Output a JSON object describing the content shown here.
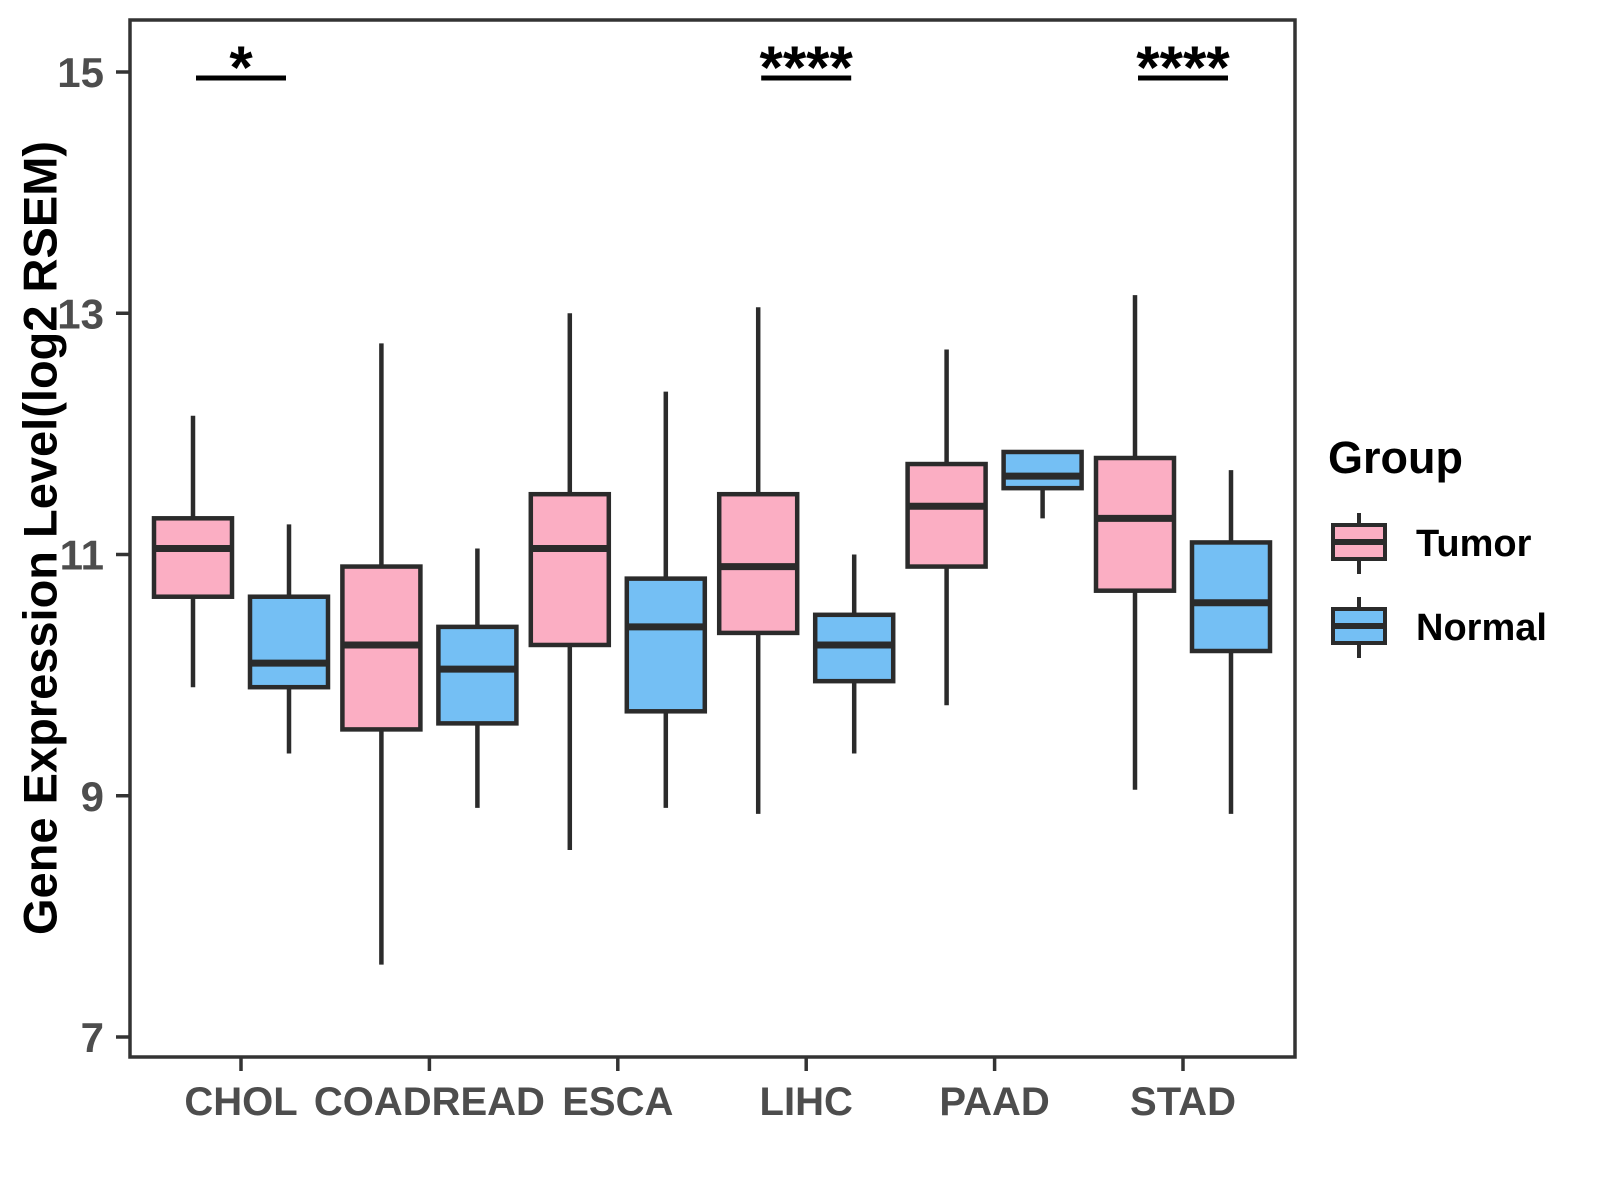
{
  "figure": {
    "background": "#FFFFFF"
  },
  "chart_data": {
    "type": "boxplot",
    "title": "",
    "xlabel": "",
    "ylabel": "Gene Expression Level(log2 RSEM)",
    "yticks": [
      7,
      9,
      11,
      13,
      15
    ],
    "ylim": [
      6.6,
      15.4
    ],
    "grid": false,
    "categories": [
      "CHOL",
      "COADREAD",
      "ESCA",
      "LIHC",
      "PAAD",
      "STAD"
    ],
    "series": [
      {
        "name": "Tumor",
        "color": "#FBAEC3",
        "boxes": [
          {
            "low": 9.9,
            "q1": 10.65,
            "median": 11.05,
            "q3": 11.3,
            "high": 12.15
          },
          {
            "low": 7.6,
            "q1": 9.55,
            "median": 10.25,
            "q3": 10.9,
            "high": 12.75
          },
          {
            "low": 8.55,
            "q1": 10.25,
            "median": 11.05,
            "q3": 11.5,
            "high": 13.0
          },
          {
            "low": 8.85,
            "q1": 10.35,
            "median": 10.9,
            "q3": 11.5,
            "high": 13.05
          },
          {
            "low": 9.75,
            "q1": 10.9,
            "median": 11.4,
            "q3": 11.75,
            "high": 12.7
          },
          {
            "low": 9.05,
            "q1": 10.7,
            "median": 11.3,
            "q3": 11.8,
            "high": 13.15
          }
        ]
      },
      {
        "name": "Normal",
        "color": "#74BFF4",
        "boxes": [
          {
            "low": 9.35,
            "q1": 9.9,
            "median": 10.1,
            "q3": 10.65,
            "high": 11.25
          },
          {
            "low": 8.9,
            "q1": 9.6,
            "median": 10.05,
            "q3": 10.4,
            "high": 11.05
          },
          {
            "low": 8.9,
            "q1": 9.7,
            "median": 10.4,
            "q3": 10.8,
            "high": 12.35
          },
          {
            "low": 9.35,
            "q1": 9.95,
            "median": 10.25,
            "q3": 10.5,
            "high": 11.0
          },
          {
            "low": 11.3,
            "q1": 11.55,
            "median": 11.65,
            "q3": 11.85,
            "high": 11.85
          },
          {
            "low": 8.85,
            "q1": 10.2,
            "median": 10.6,
            "q3": 11.1,
            "high": 11.7
          }
        ]
      }
    ],
    "significance": [
      {
        "category": "CHOL",
        "label": "*"
      },
      {
        "category": "LIHC",
        "label": "****"
      },
      {
        "category": "STAD",
        "label": "****"
      }
    ],
    "legend": {
      "title": "Group",
      "position": "right"
    },
    "colors": {
      "box_border": "#2B2B2B",
      "axis_text": "#4D4D4D",
      "panel_border": "#333333",
      "annotation": "#000000"
    }
  }
}
